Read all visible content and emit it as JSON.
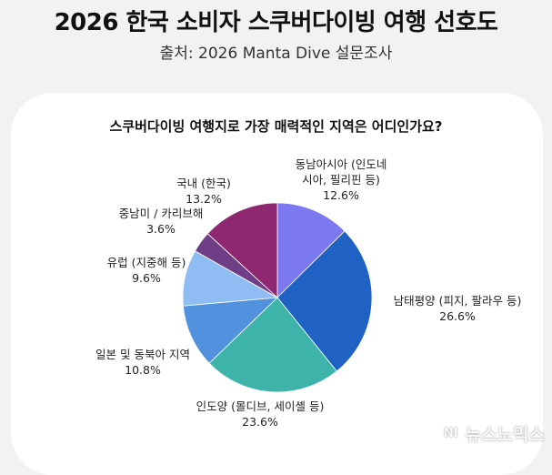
{
  "header": {
    "title": "2026 한국 소비자 스쿠버다이빙 여행 선호도",
    "source": "출처: 2026 Manta Dive 설문조사"
  },
  "watermark": {
    "logo": "NI",
    "text": "뉴스노믹스"
  },
  "chart_data": {
    "type": "pie",
    "title": "스쿠버다이빙 여행지로 가장 매력적인 지역은 어디인가요?",
    "unit": "%",
    "slices": [
      {
        "label": "동남아시아 (인도네시아, 필리핀 등)",
        "label_lines": [
          "동남아시아 (인도네",
          "시아, 필리핀 등)"
        ],
        "value": 12.6,
        "display": "12.6%",
        "color": "#7b78f0"
      },
      {
        "label": "남태평양 (피지, 팔라우 등)",
        "label_lines": [
          "남태평양 (피지, 팔라우 등)"
        ],
        "value": 26.6,
        "display": "26.6%",
        "color": "#1f62c4"
      },
      {
        "label": "인도양 (몰디브, 세이셸 등)",
        "label_lines": [
          "인도양 (몰디브, 세이셸 등)"
        ],
        "value": 23.6,
        "display": "23.6%",
        "color": "#3db3aa"
      },
      {
        "label": "일본 및 동북아 지역",
        "label_lines": [
          "일본 및 동북아 지역"
        ],
        "value": 10.8,
        "display": "10.8%",
        "color": "#5191de"
      },
      {
        "label": "유럽 (지중해 등)",
        "label_lines": [
          "유럽 (지중해 등)"
        ],
        "value": 9.6,
        "display": "9.6%",
        "color": "#8fbcf2"
      },
      {
        "label": "중남미 / 카리브해",
        "label_lines": [
          "중남미 / 카리브해"
        ],
        "value": 3.6,
        "display": "3.6%",
        "color": "#6e3f87"
      },
      {
        "label": "국내 (한국)",
        "label_lines": [
          "국내 (한국)"
        ],
        "value": 13.2,
        "display": "13.2%",
        "color": "#8e2870"
      }
    ]
  }
}
